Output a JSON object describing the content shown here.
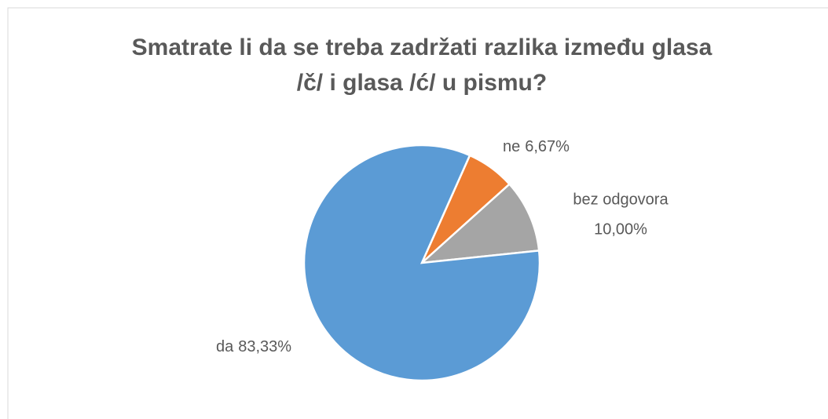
{
  "chart_data": {
    "type": "pie",
    "title": [
      "Smatrate li da se treba zadržati razlika između glasa",
      "/č/ i glasa /ć/ u pismu?"
    ],
    "categories": [
      "ne",
      "bez odgovora",
      "da"
    ],
    "values": [
      6.67,
      10.0,
      83.33
    ],
    "value_labels": [
      "6,67%",
      "10,00%",
      "83,33%"
    ],
    "colors": [
      "#ed7d31",
      "#a5a5a5",
      "#5b9bd5"
    ]
  }
}
